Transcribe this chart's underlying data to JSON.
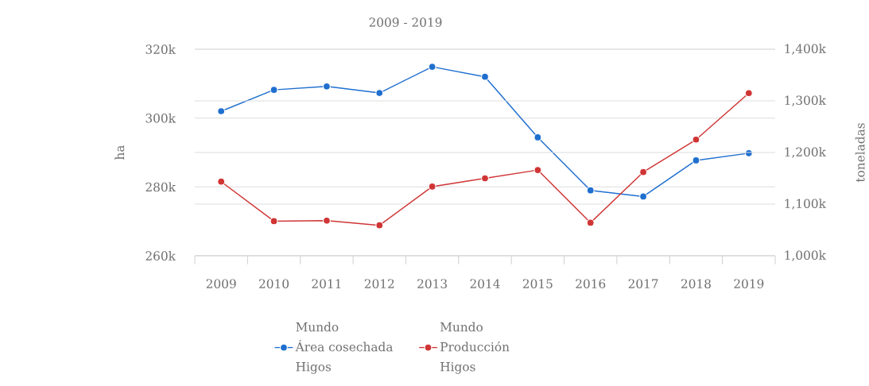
{
  "chart_data": {
    "type": "line",
    "title": "2009 - 2019",
    "ylabel": "ha",
    "y2label": "toneladas",
    "categories": [
      "2009",
      "2010",
      "2011",
      "2012",
      "2013",
      "2014",
      "2015",
      "2016",
      "2017",
      "2018",
      "2019"
    ],
    "series": [
      {
        "name": "Mundo\nÁrea cosechada\nHigos",
        "color": "#1f6fcf",
        "values": [
          302000,
          308200,
          309200,
          307300,
          314900,
          312000,
          294400,
          279000,
          277200,
          287700,
          289800
        ]
      },
      {
        "name": "Mundo\nProducción\nHigos",
        "color": "#d03535",
        "axis": "y2",
        "values": [
          1143500,
          1067000,
          1068000,
          1059000,
          1134000,
          1150000,
          1166000,
          1064000,
          1162000,
          1225000,
          1315000
        ]
      }
    ],
    "ylim": [
      260000,
      320000
    ],
    "yticks": [
      {
        "value": 260000,
        "label": "260k"
      },
      {
        "value": 280000,
        "label": "280k"
      },
      {
        "value": 300000,
        "label": "300k"
      },
      {
        "value": 320000,
        "label": "320k"
      }
    ],
    "y2lim": [
      1000000,
      1400000
    ],
    "y2ticks": [
      {
        "value": 1000000,
        "label": "1,000k"
      },
      {
        "value": 1100000,
        "label": "1,100k"
      },
      {
        "value": 1200000,
        "label": "1,200k"
      },
      {
        "value": 1300000,
        "label": "1,300k"
      },
      {
        "value": 1400000,
        "label": "1,400k"
      }
    ],
    "grid": "y",
    "legend": "bottom",
    "marker": "circle",
    "line_style": "solid"
  }
}
